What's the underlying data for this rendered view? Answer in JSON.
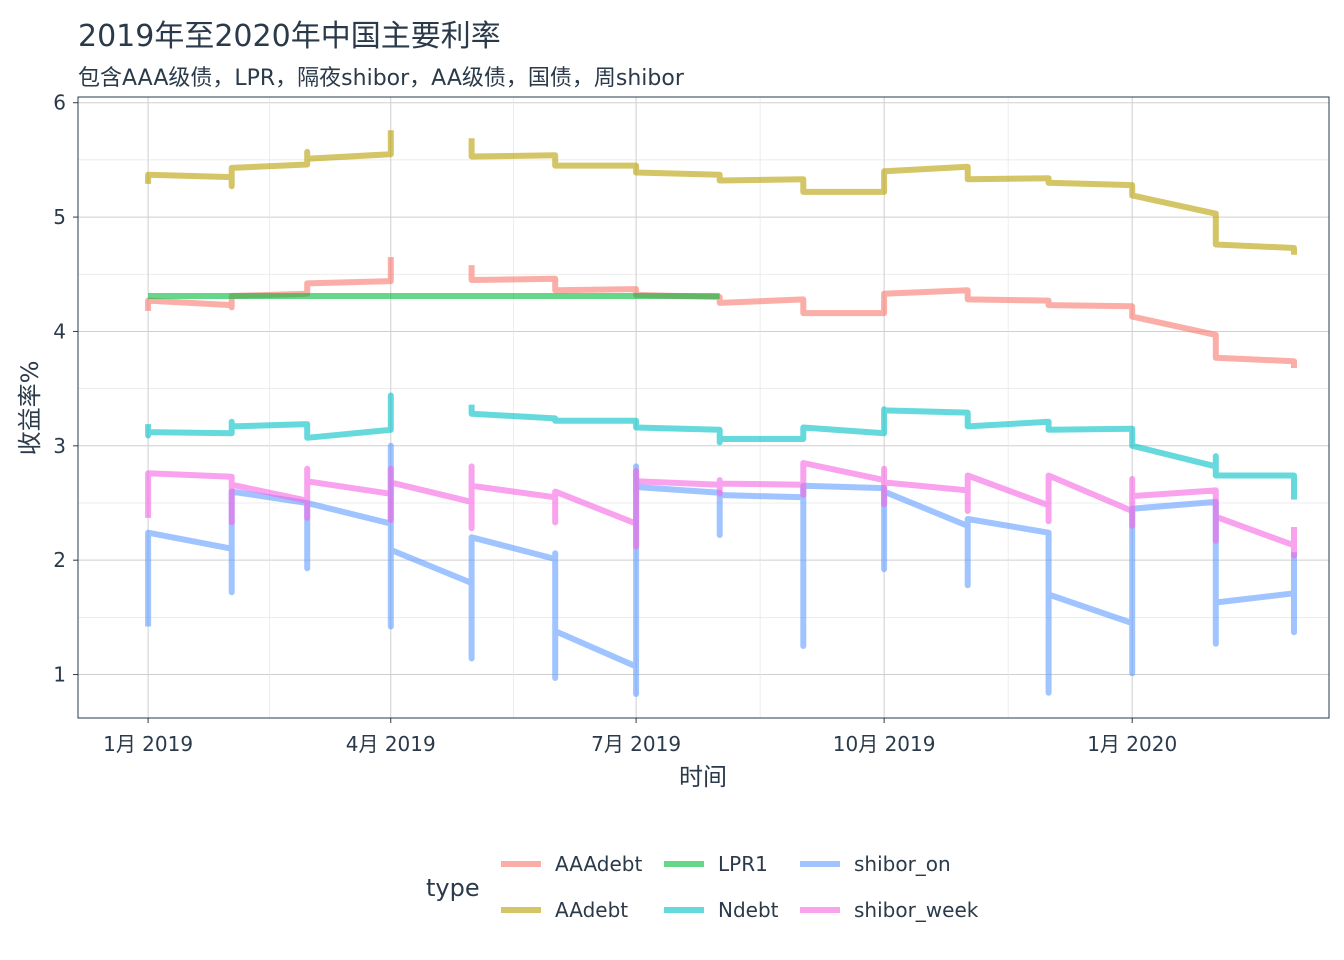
{
  "chart_data": {
    "type": "line",
    "title": "2019年至2020年中国主要利率",
    "subtitle": "包含AAA级债，LPR，隔夜shibor，AA级债，国债，周shibor",
    "xlabel": "时间",
    "ylabel": "收益率%",
    "ylim": [
      0.62,
      6.05
    ],
    "xlim": [
      "2018-12-06",
      "2020-03-14"
    ],
    "x_ticks": [
      {
        "date": "2019-01-01",
        "label": "1月 2019"
      },
      {
        "date": "2019-04-01",
        "label": "4月 2019"
      },
      {
        "date": "2019-07-01",
        "label": "7月 2019"
      },
      {
        "date": "2019-10-01",
        "label": "10月 2019"
      },
      {
        "date": "2020-01-01",
        "label": "1月 2020"
      }
    ],
    "y_ticks": [
      1,
      2,
      3,
      4,
      5,
      6
    ],
    "grid": true,
    "legend": {
      "title": "type",
      "position": "bottom"
    },
    "series": [
      {
        "name": "AAAdebt",
        "color": "#F8766D",
        "points": [
          [
            "2019-01-01",
            4.18
          ],
          [
            "2019-01-01",
            4.27
          ],
          [
            "2019-02-01",
            4.23
          ],
          [
            "2019-02-01",
            4.21
          ],
          [
            "2019-02-01",
            4.31
          ],
          [
            "2019-03-01",
            4.33
          ],
          [
            "2019-03-01",
            4.42
          ],
          [
            "2019-04-01",
            4.44
          ],
          [
            "2019-04-01",
            4.65
          ],
          null,
          [
            "2019-05-01",
            4.58
          ],
          [
            "2019-05-01",
            4.45
          ],
          [
            "2019-06-01",
            4.46
          ],
          [
            "2019-06-01",
            4.36
          ],
          [
            "2019-07-01",
            4.37
          ],
          [
            "2019-07-01",
            4.32
          ],
          [
            "2019-08-01",
            4.3
          ],
          [
            "2019-08-01",
            4.25
          ],
          [
            "2019-09-01",
            4.28
          ],
          [
            "2019-09-01",
            4.16
          ],
          [
            "2019-10-01",
            4.16
          ],
          [
            "2019-10-01",
            4.33
          ],
          [
            "2019-11-01",
            4.36
          ],
          [
            "2019-11-01",
            4.28
          ],
          [
            "2019-12-01",
            4.27
          ],
          [
            "2019-12-01",
            4.23
          ],
          [
            "2020-01-01",
            4.22
          ],
          [
            "2020-01-01",
            4.13
          ],
          [
            "2020-02-01",
            3.97
          ],
          [
            "2020-02-01",
            3.77
          ],
          [
            "2020-03-01",
            3.74
          ],
          [
            "2020-03-01",
            3.68
          ]
        ]
      },
      {
        "name": "AAdebt",
        "color": "#B79F00",
        "points": [
          [
            "2019-01-01",
            5.29
          ],
          [
            "2019-01-01",
            5.37
          ],
          [
            "2019-02-01",
            5.35
          ],
          [
            "2019-02-01",
            5.27
          ],
          [
            "2019-02-01",
            5.43
          ],
          [
            "2019-03-01",
            5.46
          ],
          [
            "2019-03-01",
            5.57
          ],
          [
            "2019-03-01",
            5.51
          ],
          [
            "2019-04-01",
            5.55
          ],
          [
            "2019-04-01",
            5.76
          ],
          null,
          [
            "2019-05-01",
            5.69
          ],
          [
            "2019-05-01",
            5.53
          ],
          [
            "2019-06-01",
            5.54
          ],
          [
            "2019-06-01",
            5.45
          ],
          [
            "2019-07-01",
            5.45
          ],
          [
            "2019-07-01",
            5.39
          ],
          [
            "2019-08-01",
            5.37
          ],
          [
            "2019-08-01",
            5.32
          ],
          [
            "2019-09-01",
            5.33
          ],
          [
            "2019-09-01",
            5.22
          ],
          [
            "2019-10-01",
            5.22
          ],
          [
            "2019-10-01",
            5.4
          ],
          [
            "2019-11-01",
            5.44
          ],
          [
            "2019-11-01",
            5.33
          ],
          [
            "2019-12-01",
            5.34
          ],
          [
            "2019-12-01",
            5.3
          ],
          [
            "2020-01-01",
            5.28
          ],
          [
            "2020-01-01",
            5.19
          ],
          [
            "2020-02-01",
            5.03
          ],
          [
            "2020-02-01",
            4.76
          ],
          [
            "2020-03-01",
            4.73
          ],
          [
            "2020-03-01",
            4.67
          ]
        ]
      },
      {
        "name": "LPR1",
        "color": "#00BA38",
        "points": [
          [
            "2019-01-01",
            4.31
          ],
          [
            "2019-08-01",
            4.31
          ]
        ]
      },
      {
        "name": "Ndebt",
        "color": "#00BFC4",
        "points": [
          [
            "2019-01-01",
            3.19
          ],
          [
            "2019-01-01",
            3.09
          ],
          [
            "2019-01-01",
            3.12
          ],
          [
            "2019-02-01",
            3.11
          ],
          [
            "2019-02-01",
            3.21
          ],
          [
            "2019-02-01",
            3.17
          ],
          [
            "2019-03-01",
            3.19
          ],
          [
            "2019-03-01",
            3.07
          ],
          [
            "2019-04-01",
            3.14
          ],
          [
            "2019-04-01",
            3.44
          ],
          [
            "2019-04-01",
            3.42
          ],
          null,
          [
            "2019-05-01",
            3.36
          ],
          [
            "2019-05-01",
            3.28
          ],
          [
            "2019-06-01",
            3.24
          ],
          [
            "2019-06-01",
            3.22
          ],
          [
            "2019-07-01",
            3.22
          ],
          [
            "2019-07-01",
            3.16
          ],
          [
            "2019-08-01",
            3.14
          ],
          [
            "2019-08-01",
            3.03
          ],
          [
            "2019-08-01",
            3.06
          ],
          [
            "2019-09-01",
            3.06
          ],
          [
            "2019-09-01",
            3.16
          ],
          [
            "2019-10-01",
            3.11
          ],
          [
            "2019-10-01",
            3.32
          ],
          [
            "2019-10-01",
            3.31
          ],
          [
            "2019-11-01",
            3.29
          ],
          [
            "2019-11-01",
            3.17
          ],
          [
            "2019-12-01",
            3.21
          ],
          [
            "2019-12-01",
            3.14
          ],
          [
            "2020-01-01",
            3.15
          ],
          [
            "2020-01-01",
            3.0
          ],
          [
            "2020-02-01",
            2.82
          ],
          [
            "2020-02-01",
            2.91
          ],
          [
            "2020-02-01",
            2.74
          ],
          [
            "2020-03-01",
            2.74
          ],
          [
            "2020-03-01",
            2.53
          ]
        ]
      },
      {
        "name": "shibor_on",
        "color": "#619CFF",
        "points": [
          [
            "2019-01-01",
            1.42
          ],
          [
            "2019-01-01",
            2.24
          ],
          [
            "2019-02-01",
            2.1
          ],
          [
            "2019-02-01",
            1.72
          ],
          [
            "2019-02-01",
            2.6
          ],
          [
            "2019-03-01",
            2.5
          ],
          [
            "2019-03-01",
            1.93
          ],
          [
            "2019-03-01",
            2.16
          ],
          [
            "2019-03-01",
            2.5
          ],
          [
            "2019-04-01",
            2.32
          ],
          [
            "2019-04-01",
            1.42
          ],
          [
            "2019-04-01",
            3.0
          ],
          [
            "2019-04-01",
            2.09
          ],
          [
            "2019-05-01",
            1.8
          ],
          [
            "2019-05-01",
            1.14
          ],
          [
            "2019-05-01",
            2.2
          ],
          [
            "2019-06-01",
            2.01
          ],
          [
            "2019-06-01",
            2.06
          ],
          [
            "2019-06-01",
            0.97
          ],
          [
            "2019-06-01",
            1.38
          ],
          [
            "2019-07-01",
            1.07
          ],
          [
            "2019-07-01",
            0.83
          ],
          [
            "2019-07-01",
            2.82
          ],
          [
            "2019-07-01",
            2.64
          ],
          [
            "2019-08-01",
            2.59
          ],
          [
            "2019-08-01",
            2.22
          ],
          [
            "2019-08-01",
            2.57
          ],
          [
            "2019-09-01",
            2.55
          ],
          [
            "2019-09-01",
            1.25
          ],
          [
            "2019-09-01",
            2.65
          ],
          [
            "2019-10-01",
            2.63
          ],
          [
            "2019-10-01",
            1.92
          ],
          [
            "2019-10-01",
            2.6
          ],
          [
            "2019-11-01",
            2.3
          ],
          [
            "2019-11-01",
            1.78
          ],
          [
            "2019-11-01",
            2.36
          ],
          [
            "2019-12-01",
            2.24
          ],
          [
            "2019-12-01",
            0.84
          ],
          [
            "2019-12-01",
            1.7
          ],
          [
            "2020-01-01",
            1.45
          ],
          [
            "2020-01-01",
            1.01
          ],
          [
            "2020-01-01",
            2.45
          ],
          [
            "2020-02-01",
            2.51
          ],
          [
            "2020-02-01",
            1.27
          ],
          [
            "2020-02-01",
            1.63
          ],
          [
            "2020-03-01",
            1.71
          ],
          [
            "2020-03-01",
            1.37
          ],
          [
            "2020-03-01",
            2.07
          ]
        ]
      },
      {
        "name": "shibor_week",
        "color": "#F564E3",
        "points": [
          [
            "2019-01-01",
            2.37
          ],
          [
            "2019-01-01",
            2.76
          ],
          [
            "2019-02-01",
            2.73
          ],
          [
            "2019-02-01",
            2.33
          ],
          [
            "2019-02-01",
            2.66
          ],
          [
            "2019-03-01",
            2.52
          ],
          [
            "2019-03-01",
            2.37
          ],
          [
            "2019-03-01",
            2.8
          ],
          [
            "2019-03-01",
            2.69
          ],
          [
            "2019-04-01",
            2.58
          ],
          [
            "2019-04-01",
            2.35
          ],
          [
            "2019-04-01",
            2.8
          ],
          [
            "2019-04-01",
            2.68
          ],
          [
            "2019-05-01",
            2.51
          ],
          [
            "2019-05-01",
            2.28
          ],
          [
            "2019-05-01",
            2.82
          ],
          [
            "2019-05-01",
            2.65
          ],
          [
            "2019-06-01",
            2.55
          ],
          [
            "2019-06-01",
            2.33
          ],
          [
            "2019-06-01",
            2.6
          ],
          [
            "2019-07-01",
            2.32
          ],
          [
            "2019-07-01",
            2.12
          ],
          [
            "2019-07-01",
            2.78
          ],
          [
            "2019-07-01",
            2.69
          ],
          [
            "2019-08-01",
            2.66
          ],
          [
            "2019-08-01",
            2.58
          ],
          [
            "2019-08-01",
            2.7
          ],
          [
            "2019-08-01",
            2.67
          ],
          [
            "2019-09-01",
            2.66
          ],
          [
            "2019-09-01",
            2.57
          ],
          [
            "2019-09-01",
            2.85
          ],
          [
            "2019-10-01",
            2.7
          ],
          [
            "2019-10-01",
            2.49
          ],
          [
            "2019-10-01",
            2.8
          ],
          [
            "2019-10-01",
            2.68
          ],
          [
            "2019-11-01",
            2.61
          ],
          [
            "2019-11-01",
            2.43
          ],
          [
            "2019-11-01",
            2.74
          ],
          [
            "2019-12-01",
            2.48
          ],
          [
            "2019-12-01",
            2.34
          ],
          [
            "2019-12-01",
            2.74
          ],
          [
            "2020-01-01",
            2.43
          ],
          [
            "2020-01-01",
            2.3
          ],
          [
            "2020-01-01",
            2.71
          ],
          [
            "2020-01-01",
            2.56
          ],
          [
            "2020-02-01",
            2.61
          ],
          [
            "2020-02-01",
            2.17
          ],
          [
            "2020-02-01",
            2.38
          ],
          [
            "2020-03-01",
            2.13
          ],
          [
            "2020-03-01",
            2.04
          ],
          [
            "2020-03-01",
            2.29
          ]
        ]
      }
    ]
  }
}
